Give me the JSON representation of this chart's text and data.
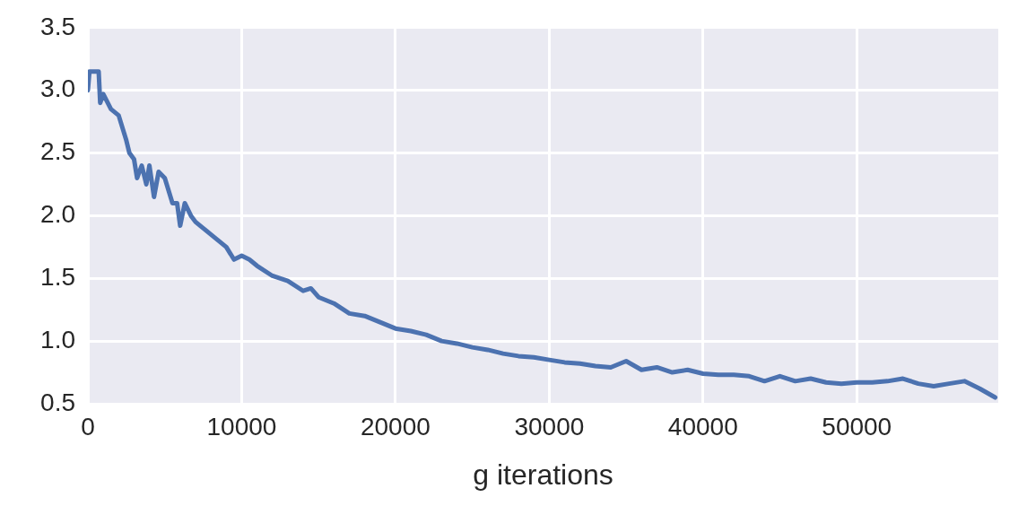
{
  "chart_data": {
    "type": "line",
    "xlabel": "g iterations",
    "color": "#4c72b0",
    "xlim": [
      0,
      59200
    ],
    "xticks": [
      0,
      10000,
      20000,
      30000,
      40000,
      50000
    ],
    "ylim": [
      0.5,
      3.5
    ],
    "yticks": [
      {
        "value": 0.5,
        "label": "0.5"
      },
      {
        "value": 1,
        "label": "1.0"
      },
      {
        "value": 1.5,
        "label": "1.5"
      },
      {
        "value": 2,
        "label": "2.0"
      },
      {
        "value": 2.5,
        "label": "2.5"
      },
      {
        "value": 3,
        "label": "3.0"
      },
      {
        "value": 3.5,
        "label": "3.5"
      }
    ],
    "grid": true,
    "legend": false,
    "marker": "none",
    "line_style": "solid",
    "x": [
      0,
      100,
      700,
      800,
      1000,
      1500,
      2000,
      2500,
      2700,
      3000,
      3200,
      3500,
      3800,
      4000,
      4300,
      4600,
      5000,
      5500,
      5800,
      6000,
      6300,
      6700,
      7000,
      7500,
      8000,
      8500,
      9000,
      9500,
      10000,
      10500,
      11000,
      12000,
      13000,
      14000,
      14500,
      15000,
      16000,
      17000,
      18000,
      19000,
      20000,
      21000,
      22000,
      23000,
      24000,
      25000,
      26000,
      27000,
      28000,
      29000,
      30000,
      31000,
      32000,
      33000,
      34000,
      35000,
      36000,
      37000,
      38000,
      39000,
      40000,
      41000,
      42000,
      43000,
      44000,
      45000,
      46000,
      47000,
      48000,
      49000,
      50000,
      51000,
      52000,
      53000,
      54000,
      55000,
      56000,
      57000,
      58000,
      59000
    ],
    "values": [
      3.0,
      3.15,
      3.15,
      2.9,
      2.97,
      2.85,
      2.8,
      2.6,
      2.5,
      2.45,
      2.3,
      2.4,
      2.25,
      2.4,
      2.15,
      2.35,
      2.3,
      2.1,
      2.1,
      1.92,
      2.1,
      2.0,
      1.95,
      1.9,
      1.85,
      1.8,
      1.75,
      1.65,
      1.68,
      1.65,
      1.6,
      1.52,
      1.48,
      1.4,
      1.42,
      1.35,
      1.3,
      1.22,
      1.2,
      1.15,
      1.1,
      1.08,
      1.05,
      1.0,
      0.98,
      0.95,
      0.93,
      0.9,
      0.88,
      0.87,
      0.85,
      0.83,
      0.82,
      0.8,
      0.79,
      0.84,
      0.77,
      0.79,
      0.75,
      0.77,
      0.74,
      0.73,
      0.73,
      0.72,
      0.68,
      0.72,
      0.68,
      0.7,
      0.67,
      0.66,
      0.67,
      0.67,
      0.68,
      0.7,
      0.66,
      0.64,
      0.66,
      0.68,
      0.62,
      0.55
    ]
  }
}
